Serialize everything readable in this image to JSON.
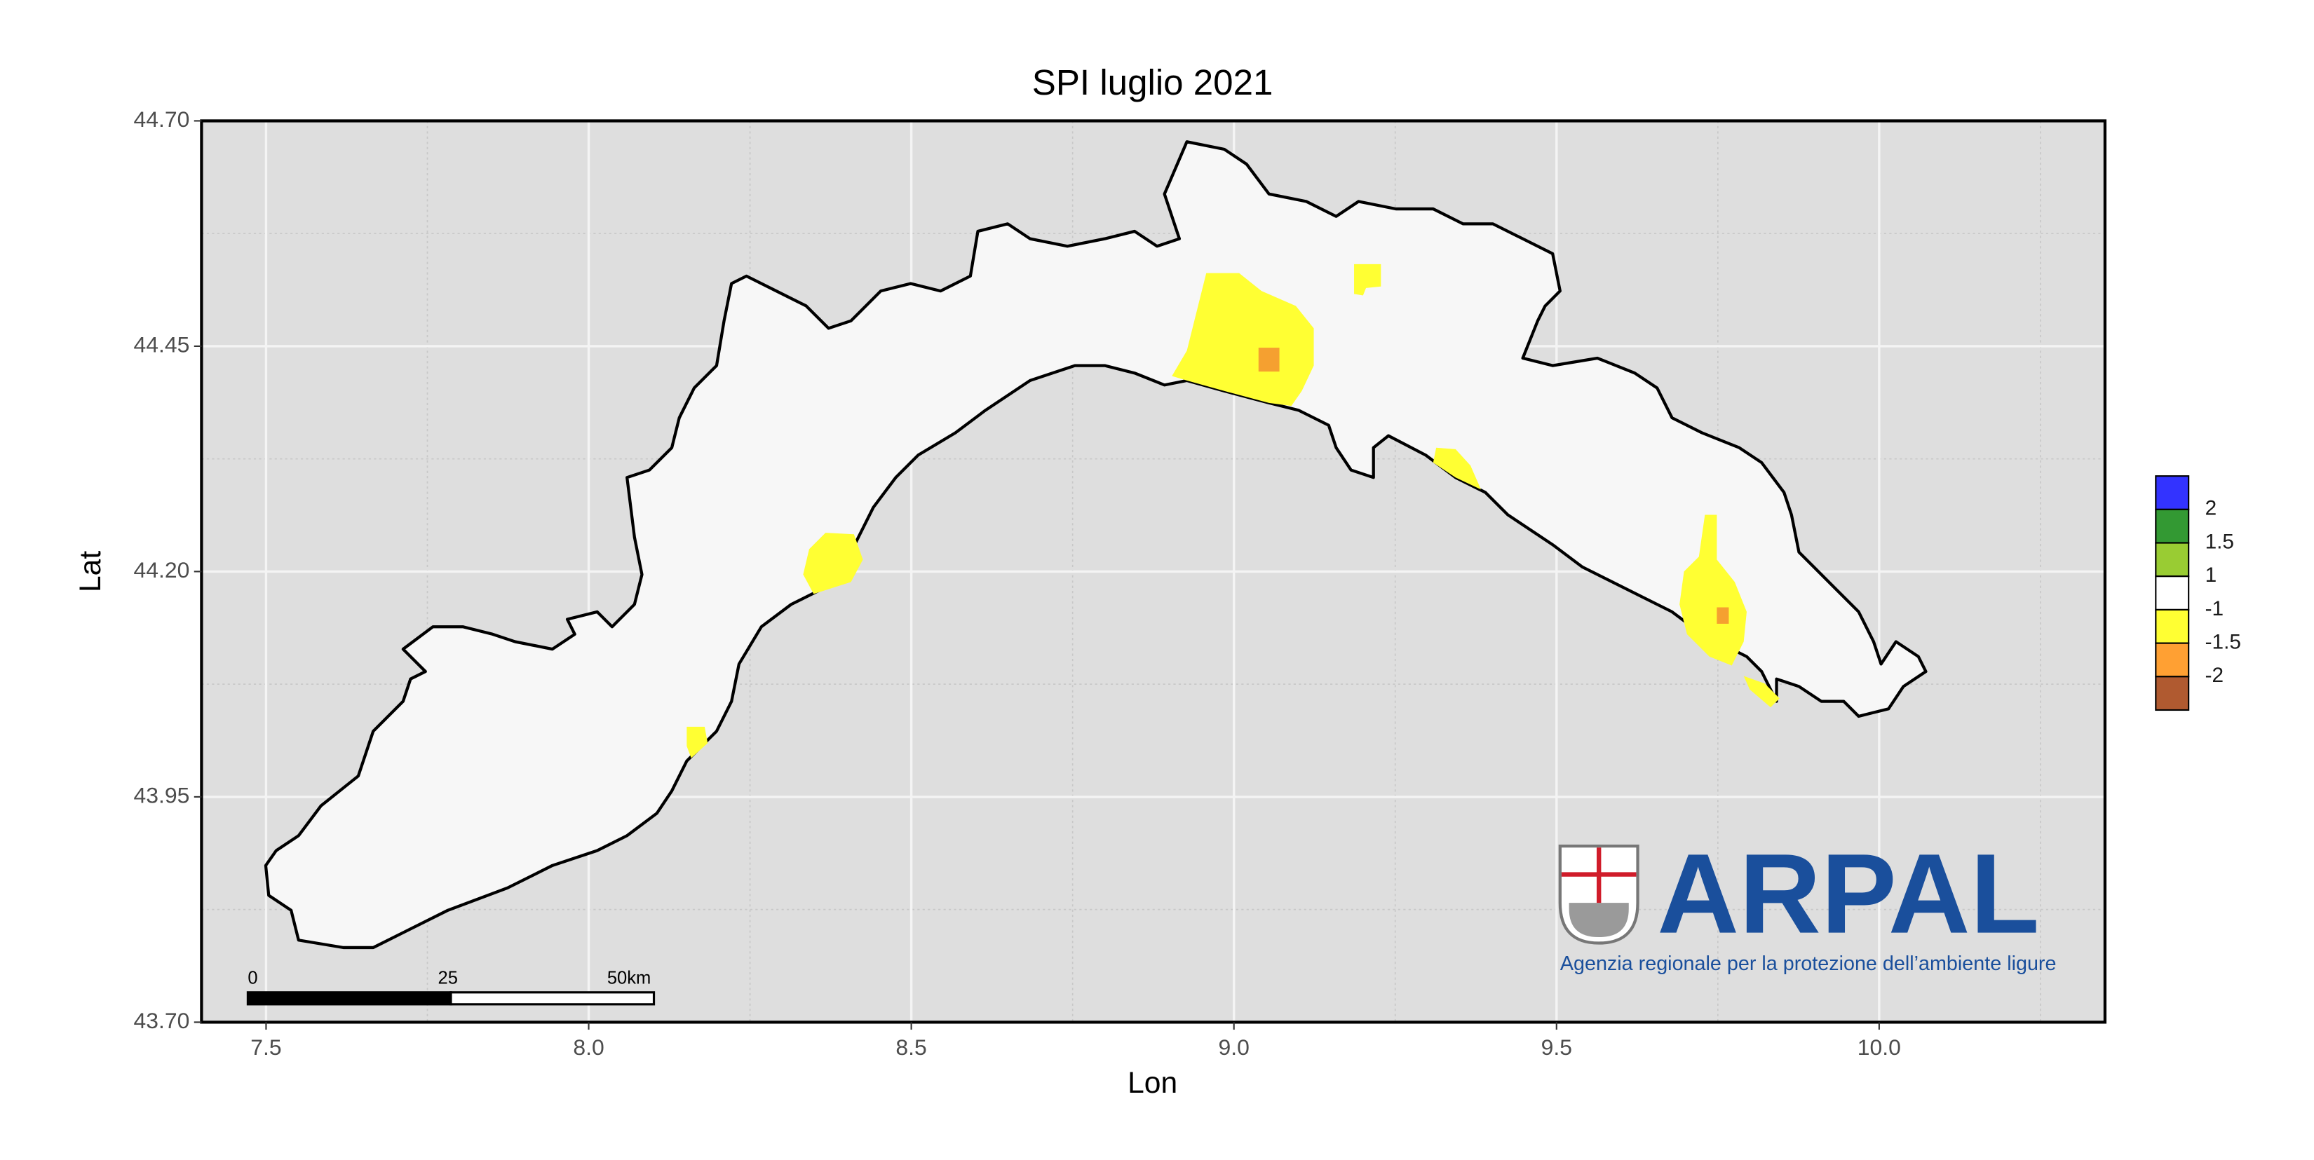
{
  "chart_data": {
    "type": "map",
    "title": "SPI luglio 2021",
    "x_label": "Lon",
    "y_label": "Lat",
    "xlim": [
      7.4,
      10.35
    ],
    "ylim": [
      43.7,
      44.7
    ],
    "xticks": [
      {
        "value": 7.5,
        "label": "7.5"
      },
      {
        "value": 8,
        "label": "8.0"
      },
      {
        "value": 8.5,
        "label": "8.5"
      },
      {
        "value": 9,
        "label": "9.0"
      },
      {
        "value": 9.5,
        "label": "9.5"
      },
      {
        "value": 10,
        "label": "10.0"
      }
    ],
    "yticks": [
      {
        "value": 43.7,
        "label": "43.70"
      },
      {
        "value": 43.95,
        "label": "43.95"
      },
      {
        "value": 44.2,
        "label": "44.20"
      },
      {
        "value": 44.45,
        "label": "44.45"
      },
      {
        "value": 44.7,
        "label": "44.70"
      }
    ],
    "x_minor_ticks": [
      7.75,
      8.25,
      8.75,
      9.25,
      9.75,
      10.25
    ],
    "y_minor_ticks": [
      43.825,
      44.075,
      44.325,
      44.575
    ],
    "grid": true,
    "legend": {
      "position": "right",
      "breaks": [
        2,
        1.5,
        1,
        -1,
        -1.5,
        -2
      ],
      "colors": [
        "#3333ff",
        "#339933",
        "#99cc33",
        "#ffffff",
        "#ffff33",
        "#ffa033",
        "#b05a30"
      ]
    },
    "scale_bar": {
      "ticks": [
        0,
        25,
        {
          "value": 50,
          "label": "50km"
        }
      ]
    },
    "logo": {
      "name": "ARPAL",
      "subtitle": "Agenzia regionale per la protezione dell’ambiente ligure"
    }
  }
}
